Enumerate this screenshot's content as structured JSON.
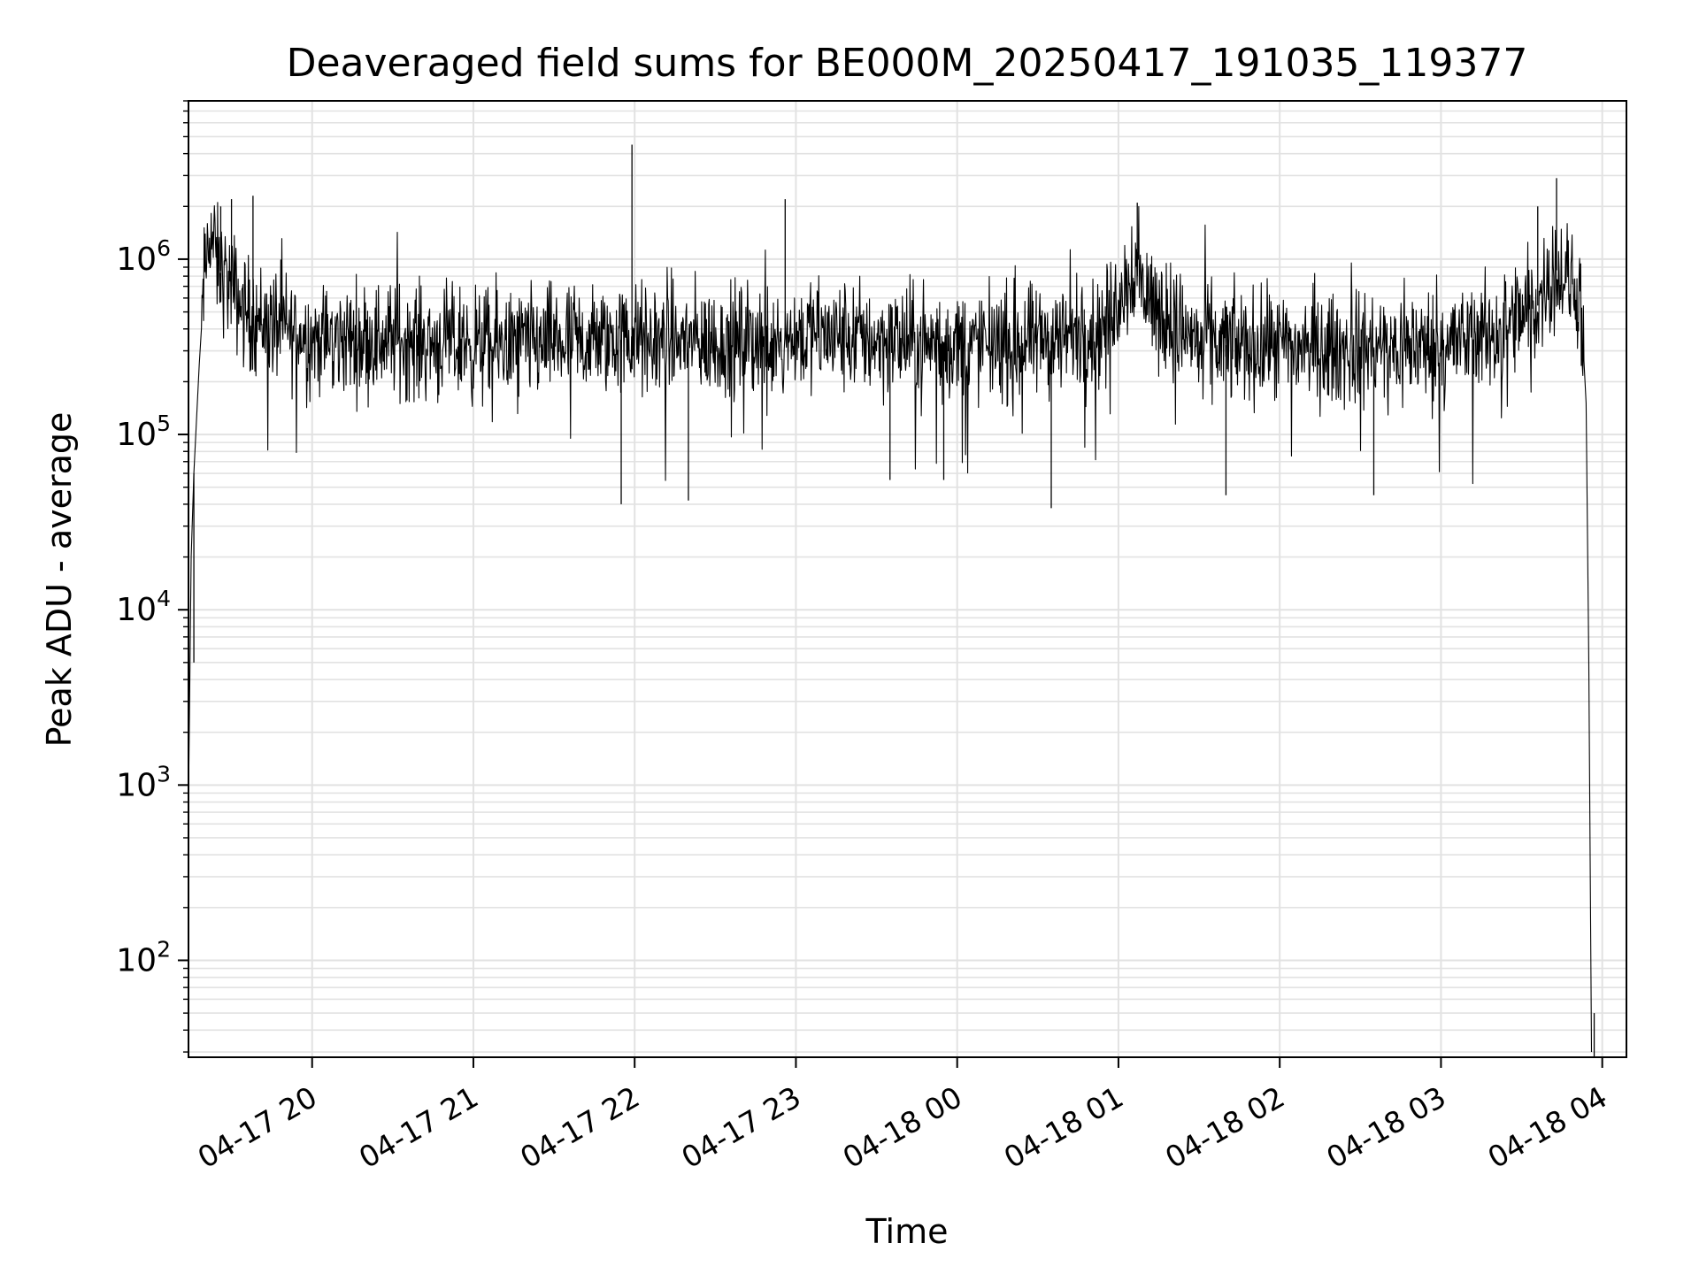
{
  "chart_data": {
    "type": "line",
    "title": "Deaveraged field sums for BE000M_20250417_191035_119377",
    "xlabel": "Time",
    "ylabel": "Peak ADU - average",
    "y_scale": "log",
    "ylim": [
      28,
      8000000
    ],
    "xlim": [
      "2025-04-17 19:14",
      "2025-04-18 04:09"
    ],
    "grid": true,
    "line_color": "#000000",
    "grid_color": "#e2e2e2",
    "x_ticks": [
      {
        "label": "04-17 20",
        "time": "2025-04-17 20:00"
      },
      {
        "label": "04-17 21",
        "time": "2025-04-17 21:00"
      },
      {
        "label": "04-17 22",
        "time": "2025-04-17 22:00"
      },
      {
        "label": "04-17 23",
        "time": "2025-04-17 23:00"
      },
      {
        "label": "04-18 00",
        "time": "2025-04-18 00:00"
      },
      {
        "label": "04-18 01",
        "time": "2025-04-18 01:00"
      },
      {
        "label": "04-18 02",
        "time": "2025-04-18 02:00"
      },
      {
        "label": "04-18 03",
        "time": "2025-04-18 03:00"
      },
      {
        "label": "04-18 04",
        "time": "2025-04-18 04:00"
      }
    ],
    "y_ticks": [
      {
        "base": "10",
        "exp": "2",
        "value": 100
      },
      {
        "base": "10",
        "exp": "3",
        "value": 1000
      },
      {
        "base": "10",
        "exp": "4",
        "value": 10000
      },
      {
        "base": "10",
        "exp": "5",
        "value": 100000
      },
      {
        "base": "10",
        "exp": "6",
        "value": 1000000
      }
    ],
    "series": [
      {
        "points": [
          [
            "2025-04-17 19:14",
            800
          ],
          [
            "2025-04-17 19:15",
            20000
          ],
          [
            "2025-04-17 19:16",
            60000
          ],
          [
            "2025-04-17 19:18",
            250000
          ],
          [
            "2025-04-17 19:20",
            800000
          ],
          [
            "2025-04-17 19:22",
            1500000
          ],
          [
            "2025-04-17 19:25",
            900000
          ],
          [
            "2025-04-17 19:30",
            700000
          ],
          [
            "2025-04-17 19:35",
            500000
          ],
          [
            "2025-04-17 19:40",
            450000
          ],
          [
            "2025-04-17 19:50",
            400000
          ],
          [
            "2025-04-17 20:00",
            350000
          ],
          [
            "2025-04-17 20:30",
            350000
          ],
          [
            "2025-04-17 21:00",
            320000
          ],
          [
            "2025-04-17 21:30",
            330000
          ],
          [
            "2025-04-17 22:00",
            350000
          ],
          [
            "2025-04-17 22:30",
            330000
          ],
          [
            "2025-04-17 23:00",
            370000
          ],
          [
            "2025-04-17 23:30",
            350000
          ],
          [
            "2025-04-18 00:00",
            320000
          ],
          [
            "2025-04-18 00:30",
            330000
          ],
          [
            "2025-04-18 00:55",
            400000
          ],
          [
            "2025-04-18 01:05",
            900000
          ],
          [
            "2025-04-18 01:15",
            500000
          ],
          [
            "2025-04-18 01:30",
            330000
          ],
          [
            "2025-04-18 02:00",
            310000
          ],
          [
            "2025-04-18 02:30",
            300000
          ],
          [
            "2025-04-18 03:00",
            320000
          ],
          [
            "2025-04-18 03:20",
            380000
          ],
          [
            "2025-04-18 03:35",
            500000
          ],
          [
            "2025-04-18 03:42",
            900000
          ],
          [
            "2025-04-18 03:52",
            600000
          ],
          [
            "2025-04-18 03:54",
            150000
          ],
          [
            "2025-04-18 03:55",
            5000
          ],
          [
            "2025-04-18 03:56",
            30
          ]
        ],
        "spikes": [
          [
            "2025-04-17 21:59",
            4500000
          ],
          [
            "2025-04-17 22:56",
            2200000
          ],
          [
            "2025-04-18 01:07",
            2100000
          ],
          [
            "2025-04-18 03:43",
            2900000
          ],
          [
            "2025-04-17 19:38",
            2300000
          ],
          [
            "2025-04-17 19:30",
            2200000
          ],
          [
            "2025-04-17 19:26",
            2000000
          ],
          [
            "2025-04-18 03:36",
            2000000
          ],
          [
            "2025-04-17 21:55",
            40000
          ],
          [
            "2025-04-18 00:35",
            38000
          ],
          [
            "2025-04-17 22:20",
            42000
          ],
          [
            "2025-04-18 02:35",
            45000
          ],
          [
            "2025-04-18 01:40",
            45000
          ],
          [
            "2025-04-17 23:55",
            55000
          ],
          [
            "2025-04-17 23:35",
            55000
          ],
          [
            "2025-04-17 19:16",
            5000
          ]
        ]
      }
    ]
  }
}
